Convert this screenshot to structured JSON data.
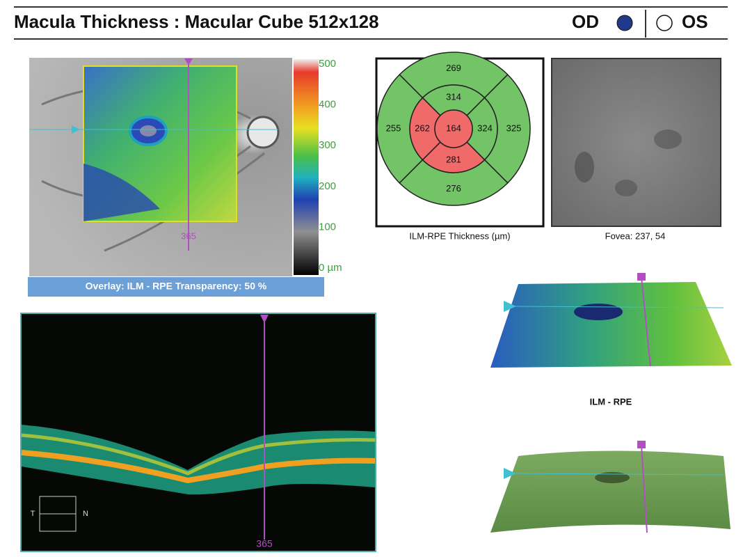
{
  "header": {
    "title": "Macula Thickness : Macular Cube 512x128",
    "eye_od": "OD",
    "eye_os": "OS"
  },
  "thickness_map": {
    "scale_labels": [
      500,
      400,
      300,
      200,
      100,
      "0 µm"
    ],
    "marker": 365,
    "overlay": "Overlay: ILM - RPE  Transparency: 50 %"
  },
  "etdrs_grid": {
    "caption": "ILM-RPE Thickness (µm)",
    "center": 164,
    "inner": {
      "superior": 314,
      "temporal": 262,
      "nasal": 324,
      "inferior": 281
    },
    "outer": {
      "superior": 269,
      "temporal": 255,
      "nasal": 325,
      "inferior": 276
    }
  },
  "fundus": {
    "caption": "Fovea: 237, 54"
  },
  "bscan": {
    "marker": 365,
    "temporal": "T",
    "nasal": "N"
  },
  "surface_maps": {
    "caption": "ILM - RPE"
  }
}
